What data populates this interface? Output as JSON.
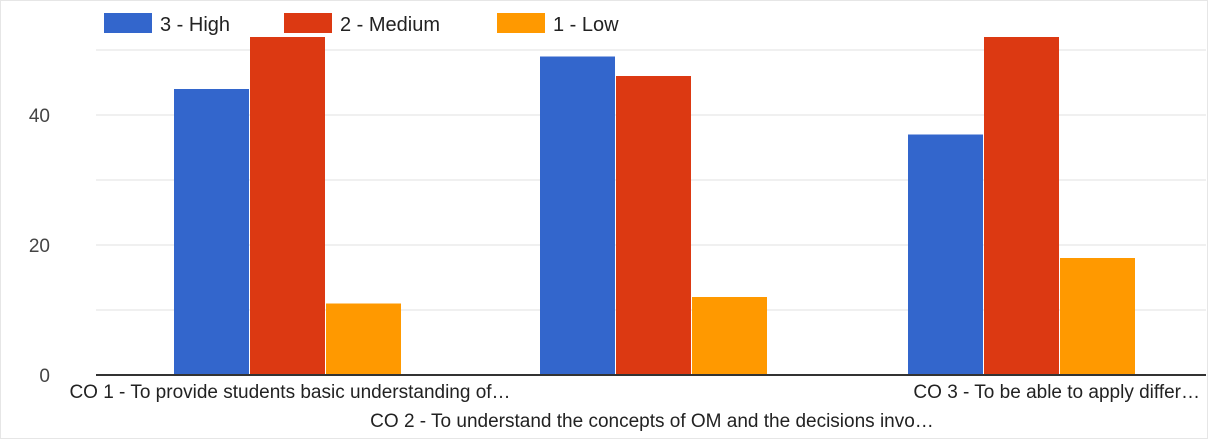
{
  "chart_data": {
    "type": "bar",
    "categories": [
      "CO 1 - To provide students basic understanding of…",
      "CO 2 - To understand the concepts of OM and the decisions invo…",
      "CO 3 - To be able to apply differ…"
    ],
    "series": [
      {
        "name": "3 - High",
        "color": "#3366cc",
        "values": [
          44,
          49,
          37
        ]
      },
      {
        "name": "2 - Medium",
        "color": "#dc3912",
        "values": [
          52,
          46,
          52
        ]
      },
      {
        "name": "1 - Low",
        "color": "#ff9900",
        "values": [
          11,
          12,
          18
        ]
      }
    ],
    "title": "",
    "xlabel": "",
    "ylabel": "",
    "ylim": [
      0,
      52
    ],
    "yticks": [
      0,
      20,
      40
    ],
    "grid": true,
    "legend": "top-left"
  }
}
